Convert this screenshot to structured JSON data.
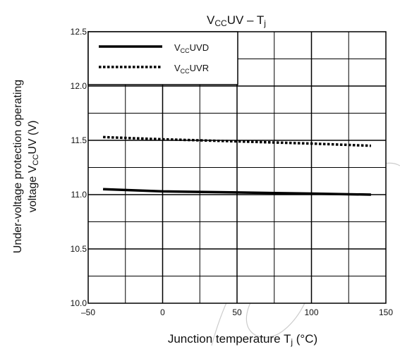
{
  "chart_data": {
    "type": "line",
    "title": {
      "main": "V",
      "sub": "CC",
      "tail": "UV – T",
      "tsub": "j"
    },
    "ylabel": {
      "line1": "Under-voltage protection operating",
      "line2_main": "voltage   V",
      "line2_sub": "CC",
      "line2_tail": "UV   (V)"
    },
    "xlabel": {
      "main": "Junction temperature   T",
      "sub": "j",
      "tail": "   (°C)"
    },
    "xlim": [
      -50,
      150
    ],
    "ylim": [
      10.0,
      12.5
    ],
    "x_ticks": [
      "–50",
      "0",
      "50",
      "100",
      "150"
    ],
    "y_ticks": [
      "10.0",
      "10.5",
      "11.0",
      "11.5",
      "12.0",
      "12.5"
    ],
    "grid": true,
    "legend_position": "top-left",
    "series": [
      {
        "name_main": "V",
        "name_sub": "CC",
        "name_tail": "UVD",
        "style": "solid",
        "x": [
          -40,
          0,
          50,
          100,
          140
        ],
        "y": [
          11.05,
          11.03,
          11.02,
          11.01,
          11.0
        ]
      },
      {
        "name_main": "V",
        "name_sub": "CC",
        "name_tail": "UVR",
        "style": "dotted",
        "x": [
          -40,
          0,
          50,
          100,
          140
        ],
        "y": [
          11.53,
          11.51,
          11.49,
          11.47,
          11.45
        ]
      }
    ]
  },
  "colors": {
    "line": "#000000",
    "grid": "#000000",
    "watermark": "#cccccc"
  }
}
